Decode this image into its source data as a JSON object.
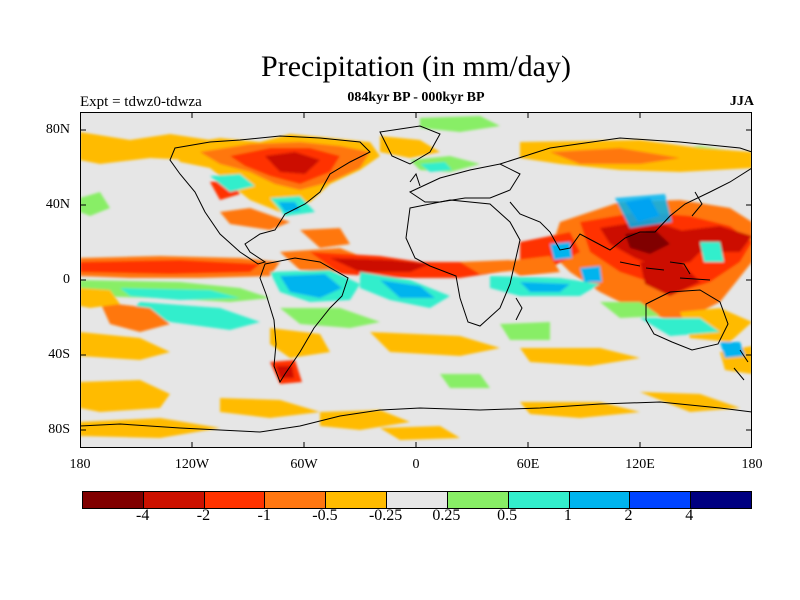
{
  "title": "Precipitation (in mm/day)",
  "subtitle": "084kyr BP - 000kyr BP",
  "left_label": "Expt = tdwz0-tdwza",
  "right_label": "JJA",
  "chart_data": {
    "type": "heatmap",
    "title": "Precipitation (in mm/day)",
    "subtitle": "084kyr BP - 000kyr BP",
    "experiment": "Expt = tdwz0-tdwza",
    "season": "JJA",
    "y_ticks": [
      "80N",
      "40N",
      "0",
      "40S",
      "80S"
    ],
    "x_ticks": [
      "180",
      "120W",
      "60W",
      "0",
      "60E",
      "120E",
      "180"
    ],
    "xlim": [
      -180,
      180
    ],
    "ylim": [
      -90,
      90
    ],
    "colorbar": {
      "labels": [
        "-4",
        "-2",
        "-1",
        "-0.5",
        "-0.25",
        "0.25",
        "0.5",
        "1",
        "2",
        "4"
      ],
      "colors": [
        "#800000",
        "#cc1100",
        "#ff3300",
        "#ff7711",
        "#ffbb00",
        "#e6e6e6",
        "#88ee66",
        "#33eecc",
        "#00b4ee",
        "#0044ff",
        "#000080"
      ]
    }
  }
}
